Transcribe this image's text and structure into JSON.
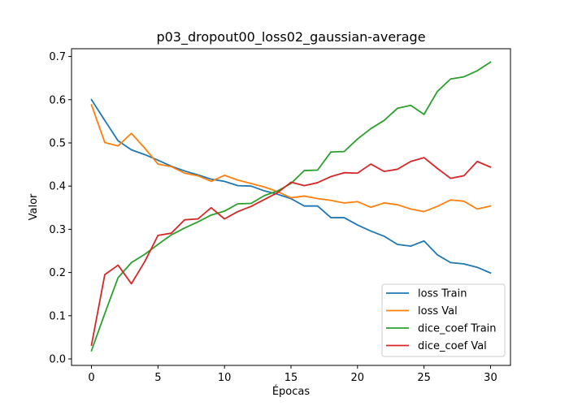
{
  "chart_data": {
    "type": "line",
    "title": "p03_dropout00_loss02_gaussian-average",
    "xlabel": "Épocas",
    "ylabel": "Valor",
    "xlim": [
      -1.5,
      31.5
    ],
    "ylim": [
      -0.015,
      0.718
    ],
    "xticks": [
      0,
      5,
      10,
      15,
      20,
      25,
      30
    ],
    "yticks": [
      0.0,
      0.1,
      0.2,
      0.3,
      0.4,
      0.5,
      0.6,
      0.7
    ],
    "xtick_labels": [
      "0",
      "5",
      "10",
      "15",
      "20",
      "25",
      "30"
    ],
    "ytick_labels": [
      "0.0",
      "0.1",
      "0.2",
      "0.3",
      "0.4",
      "0.5",
      "0.6",
      "0.7"
    ],
    "grid": false,
    "legend_position": "lower-right",
    "x": [
      0,
      1,
      2,
      3,
      4,
      5,
      6,
      7,
      8,
      9,
      10,
      11,
      12,
      13,
      14,
      15,
      16,
      17,
      18,
      19,
      20,
      21,
      22,
      23,
      24,
      25,
      26,
      27,
      28,
      29,
      30
    ],
    "series": [
      {
        "name": "loss Train",
        "color": "#1f77b4",
        "values": [
          0.6,
          0.552,
          0.505,
          0.484,
          0.473,
          0.46,
          0.446,
          0.435,
          0.426,
          0.416,
          0.411,
          0.401,
          0.4,
          0.389,
          0.381,
          0.371,
          0.354,
          0.354,
          0.327,
          0.327,
          0.31,
          0.296,
          0.284,
          0.265,
          0.261,
          0.273,
          0.241,
          0.223,
          0.22,
          0.212,
          0.199
        ]
      },
      {
        "name": "loss Val",
        "color": "#ff7f0e",
        "values": [
          0.588,
          0.501,
          0.493,
          0.522,
          0.488,
          0.451,
          0.445,
          0.43,
          0.424,
          0.411,
          0.425,
          0.414,
          0.406,
          0.398,
          0.387,
          0.373,
          0.377,
          0.371,
          0.367,
          0.361,
          0.364,
          0.351,
          0.361,
          0.357,
          0.347,
          0.341,
          0.353,
          0.368,
          0.365,
          0.347,
          0.354
        ]
      },
      {
        "name": "dice_coef Train",
        "color": "#2ca02c",
        "values": [
          0.019,
          0.105,
          0.188,
          0.223,
          0.242,
          0.265,
          0.287,
          0.303,
          0.317,
          0.333,
          0.342,
          0.359,
          0.36,
          0.378,
          0.389,
          0.406,
          0.436,
          0.437,
          0.479,
          0.48,
          0.509,
          0.533,
          0.552,
          0.58,
          0.587,
          0.566,
          0.619,
          0.648,
          0.653,
          0.667,
          0.687
        ]
      },
      {
        "name": "dice_coef Val",
        "color": "#d62728",
        "values": [
          0.032,
          0.195,
          0.217,
          0.174,
          0.225,
          0.286,
          0.291,
          0.322,
          0.324,
          0.35,
          0.324,
          0.341,
          0.353,
          0.369,
          0.385,
          0.409,
          0.401,
          0.408,
          0.422,
          0.431,
          0.43,
          0.451,
          0.434,
          0.439,
          0.457,
          0.466,
          0.441,
          0.418,
          0.424,
          0.457,
          0.444
        ]
      }
    ]
  }
}
